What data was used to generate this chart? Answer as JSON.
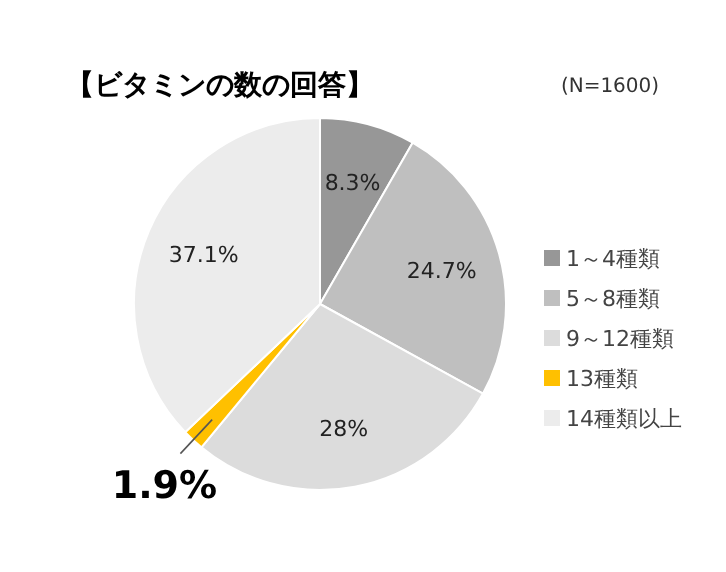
{
  "chart_data": {
    "type": "pie",
    "title": "【ビタミンの数の回答】",
    "subtitle": "(N=1600)",
    "categories": [
      "1～4種類",
      "5～8種類",
      "9～12種類",
      "13種類",
      "14種類以上"
    ],
    "values": [
      8.3,
      24.7,
      28,
      1.9,
      37.1
    ],
    "colors": [
      "#979797",
      "#bfbfbf",
      "#dcdcdc",
      "#ffc000",
      "#ececec"
    ],
    "value_labels": [
      "8.3%",
      "24.7%",
      "28%",
      "1.9%",
      "37.1%"
    ],
    "legend": "right"
  }
}
